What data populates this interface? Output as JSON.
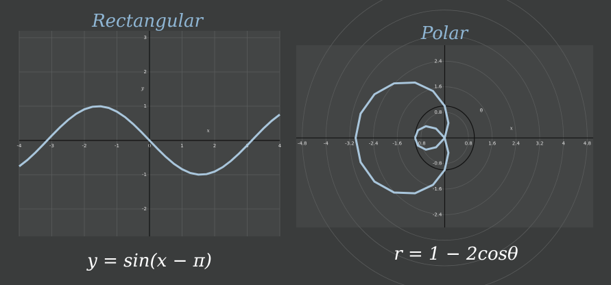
{
  "chart_data": [
    {
      "type": "line",
      "title": "Rectangular",
      "annotation": "y = sin(x − π)",
      "x_label": "x",
      "y_label": "y",
      "x": [
        -4,
        -3.75,
        -3.5,
        -3.25,
        -3,
        -2.75,
        -2.5,
        -2.25,
        -2,
        -1.75,
        -1.5,
        -1.25,
        -1,
        -0.75,
        -0.5,
        -0.25,
        0,
        0.25,
        0.5,
        0.75,
        1,
        1.25,
        1.5,
        1.75,
        2,
        2.25,
        2.5,
        2.75,
        3,
        3.25,
        3.5,
        3.75,
        4
      ],
      "values": [
        -0.757,
        -0.572,
        -0.351,
        -0.108,
        0.141,
        0.382,
        0.598,
        0.778,
        0.909,
        0.984,
        0.997,
        0.949,
        0.841,
        0.682,
        0.479,
        0.247,
        0,
        -0.247,
        -0.479,
        -0.682,
        -0.841,
        -0.949,
        -0.997,
        -0.984,
        -0.909,
        -0.778,
        -0.598,
        -0.382,
        -0.141,
        0.108,
        0.351,
        0.572,
        0.757
      ],
      "color": "#a9c6dc",
      "xlim": [
        -4,
        4
      ],
      "ylim": [
        -2.8,
        3.2
      ],
      "xticks": [
        -4,
        -3,
        -2,
        -1,
        0,
        1,
        2,
        3,
        4
      ],
      "yticks": [
        -2,
        -1,
        1,
        2,
        3
      ],
      "grid": true
    },
    {
      "type": "polar",
      "title": "Polar",
      "annotation": "r = 1 − 2cosθ",
      "x_label": "x",
      "theta_label": "θ",
      "theta": [
        0,
        15,
        30,
        45,
        60,
        75,
        90,
        105,
        120,
        135,
        150,
        165,
        180,
        195,
        210,
        225,
        240,
        255,
        270,
        285,
        300,
        315,
        330,
        345,
        360
      ],
      "values": [
        -1,
        -0.932,
        -0.732,
        -0.414,
        0,
        0.482,
        1,
        1.518,
        2,
        2.414,
        2.732,
        2.932,
        3,
        2.932,
        2.732,
        2.414,
        2,
        1.518,
        1,
        0.482,
        0,
        -0.414,
        -0.732,
        -0.932,
        -1
      ],
      "circle_r": 1,
      "color": "#a9c6dc",
      "xlim": [
        -5,
        5
      ],
      "ylim": [
        -2.8,
        2.9
      ],
      "xticks": [
        -4.8,
        -4,
        -3.2,
        -2.4,
        -1.6,
        -0.8,
        0.8,
        1.6,
        2.4,
        3.2,
        4,
        4.8
      ],
      "yticks": [
        -2.4,
        -1.6,
        -0.8,
        0.8,
        1.6,
        2.4
      ],
      "grid": true
    }
  ]
}
